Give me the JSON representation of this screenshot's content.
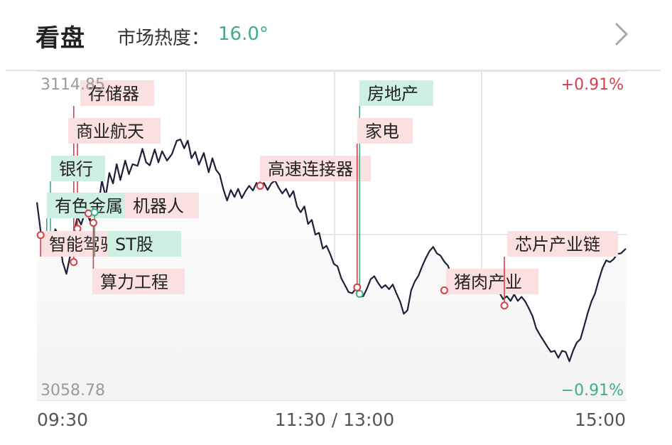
{
  "header": {
    "title": "看盘",
    "heat_label": "市场热度：",
    "heat_value": "16.0°",
    "more_icon": "chevron-right-icon"
  },
  "chart_data": {
    "type": "line",
    "title": "",
    "ylim": [
      3058.78,
      3114.85
    ],
    "y_top_label": "3114.85",
    "y_bottom_label": "3058.78",
    "pct_top_label": "+0.91%",
    "pct_bottom_label": "−0.91%",
    "x_tick_labels": [
      "09:30",
      "11:30 / 13:00",
      "15:00"
    ],
    "x_range": [
      0,
      240
    ],
    "grid": true,
    "series": [
      {
        "values": [
          [
            0,
            3092.5
          ],
          [
            1.5,
            3087.6
          ],
          [
            2.5,
            3085.2
          ],
          [
            4,
            3083.6
          ],
          [
            6,
            3085.2
          ],
          [
            7.5,
            3087.9
          ],
          [
            9,
            3086.7
          ],
          [
            10.5,
            3082.3
          ],
          [
            12,
            3080.3
          ],
          [
            13.5,
            3083.3
          ],
          [
            15,
            3087.2
          ],
          [
            16.5,
            3090.0
          ],
          [
            18,
            3088.7
          ],
          [
            20,
            3091.3
          ],
          [
            21.5,
            3089.4
          ],
          [
            23,
            3091.8
          ],
          [
            24.5,
            3090.5
          ],
          [
            26.5,
            3096.2
          ],
          [
            28,
            3093.4
          ],
          [
            29.5,
            3097.5
          ],
          [
            31,
            3095.7
          ],
          [
            32.5,
            3099.0
          ],
          [
            34,
            3096.3
          ],
          [
            36,
            3099.6
          ],
          [
            37.5,
            3097.3
          ],
          [
            39,
            3099.0
          ],
          [
            41,
            3098.7
          ],
          [
            43,
            3101.6
          ],
          [
            44.5,
            3099.3
          ],
          [
            46,
            3098.8
          ],
          [
            48,
            3101.5
          ],
          [
            49.5,
            3099.3
          ],
          [
            51,
            3101.2
          ],
          [
            53,
            3099.6
          ],
          [
            55,
            3100.7
          ],
          [
            57,
            3103.0
          ],
          [
            58.5,
            3103.2
          ],
          [
            60,
            3101.7
          ],
          [
            61.5,
            3103.0
          ],
          [
            63,
            3100.0
          ],
          [
            64.5,
            3101.1
          ],
          [
            66,
            3098.9
          ],
          [
            68,
            3100.9
          ],
          [
            70,
            3097.6
          ],
          [
            71.5,
            3100.0
          ],
          [
            73,
            3098.0
          ],
          [
            74.5,
            3097.2
          ],
          [
            76,
            3094.7
          ],
          [
            77.5,
            3092.8
          ],
          [
            79,
            3094.6
          ],
          [
            80.5,
            3093.4
          ],
          [
            82,
            3094.8
          ],
          [
            83.5,
            3093.2
          ],
          [
            85,
            3094.4
          ],
          [
            86.5,
            3095.3
          ],
          [
            88,
            3094.5
          ],
          [
            89.5,
            3095.8
          ],
          [
            91,
            3095.0
          ],
          [
            92.5,
            3095.8
          ],
          [
            94,
            3094.6
          ],
          [
            95.5,
            3095.7
          ],
          [
            97,
            3096.2
          ],
          [
            98.5,
            3095.0
          ],
          [
            100,
            3094.0
          ],
          [
            101.5,
            3094.8
          ],
          [
            103,
            3093.4
          ],
          [
            104.5,
            3094.4
          ],
          [
            106,
            3091.8
          ],
          [
            107.5,
            3090.8
          ],
          [
            109,
            3091.8
          ],
          [
            110.5,
            3088.8
          ],
          [
            112,
            3089.5
          ],
          [
            113.5,
            3087.0
          ],
          [
            115,
            3087.3
          ],
          [
            116.5,
            3084.6
          ],
          [
            118,
            3085.1
          ],
          [
            119.5,
            3083.7
          ],
          [
            121,
            3082.0
          ],
          [
            122.5,
            3081.6
          ],
          [
            124,
            3079.6
          ],
          [
            125.5,
            3078.4
          ],
          [
            127,
            3077.2
          ],
          [
            128.5,
            3077.0
          ],
          [
            130,
            3077.8
          ],
          [
            131.5,
            3076.4
          ],
          [
            133,
            3076.5
          ],
          [
            134.5,
            3077.8
          ],
          [
            136,
            3079.4
          ],
          [
            137.5,
            3079.9
          ],
          [
            139,
            3078.8
          ],
          [
            140.5,
            3077.9
          ],
          [
            142,
            3078.4
          ],
          [
            143.5,
            3077.7
          ],
          [
            145,
            3078.5
          ],
          [
            146.5,
            3077.0
          ],
          [
            148,
            3075.6
          ],
          [
            149.5,
            3073.5
          ],
          [
            151,
            3074.1
          ],
          [
            152.5,
            3077.5
          ],
          [
            154,
            3079.0
          ],
          [
            155.5,
            3080.0
          ],
          [
            157,
            3081.6
          ],
          [
            158.5,
            3083.0
          ],
          [
            160,
            3084.2
          ],
          [
            161.5,
            3084.9
          ],
          [
            163,
            3083.8
          ],
          [
            164.5,
            3083.4
          ],
          [
            166,
            3082.4
          ],
          [
            167.5,
            3081.7
          ],
          [
            169,
            3079.9
          ],
          [
            170.5,
            3081.0
          ],
          [
            172,
            3079.6
          ],
          [
            173.5,
            3078.3
          ],
          [
            175,
            3079.3
          ],
          [
            176.5,
            3080.1
          ],
          [
            178,
            3078.8
          ],
          [
            179.5,
            3078.2
          ],
          [
            181,
            3080.4
          ],
          [
            182.5,
            3079.8
          ],
          [
            184,
            3079.0
          ],
          [
            185.5,
            3078.1
          ],
          [
            187,
            3077.6
          ],
          [
            188.5,
            3077.1
          ],
          [
            190,
            3076.0
          ],
          [
            191.5,
            3076.5
          ],
          [
            193,
            3075.7
          ],
          [
            194.5,
            3076.8
          ],
          [
            196,
            3075.7
          ],
          [
            197.5,
            3076.4
          ],
          [
            199,
            3075.6
          ],
          [
            200.5,
            3074.4
          ],
          [
            202,
            3073.1
          ],
          [
            203.5,
            3071.0
          ],
          [
            205,
            3069.9
          ],
          [
            206.5,
            3068.9
          ],
          [
            208,
            3067.9
          ],
          [
            209.5,
            3067.0
          ],
          [
            211,
            3067.2
          ],
          [
            212.5,
            3066.0
          ],
          [
            214,
            3067.2
          ],
          [
            215.5,
            3067.0
          ],
          [
            217,
            3065.4
          ],
          [
            218.5,
            3067.2
          ],
          [
            220,
            3068.6
          ],
          [
            221.5,
            3069.2
          ],
          [
            223,
            3071.4
          ],
          [
            224.5,
            3073.7
          ],
          [
            226,
            3075.6
          ],
          [
            227.5,
            3077.0
          ],
          [
            229,
            3079.3
          ],
          [
            230.5,
            3081.3
          ],
          [
            232,
            3082.6
          ],
          [
            233.5,
            3082.3
          ],
          [
            235,
            3082.8
          ],
          [
            236.5,
            3083.7
          ],
          [
            238,
            3083.8
          ],
          [
            240,
            3084.6
          ]
        ]
      }
    ],
    "annotations": [
      {
        "label": "存储器",
        "x": 15,
        "y": 3082.3,
        "color": "red"
      },
      {
        "label": "商业航天",
        "x": 16.5,
        "y": 3088.0,
        "color": "red"
      },
      {
        "label": "银行",
        "x": 5.5,
        "y": 3084.6,
        "color": "green"
      },
      {
        "label": "有色金属",
        "x": 4,
        "y": 3086.0,
        "color": "green"
      },
      {
        "label": "机器人",
        "x": 21,
        "y": 3090.6,
        "color": "red"
      },
      {
        "label": "智能驾驶",
        "x": 1.5,
        "y": 3086.9,
        "color": "red"
      },
      {
        "label": "ST股",
        "x": 23.5,
        "y": 3090.8,
        "color": "green"
      },
      {
        "label": "算力工程",
        "x": 23,
        "y": 3089.0,
        "color": "red"
      },
      {
        "label": "高速连接器",
        "x": 91,
        "y": 3095.3,
        "color": "red"
      },
      {
        "label": "房地产",
        "x": 131.5,
        "y": 3076.9,
        "color": "green"
      },
      {
        "label": "家电",
        "x": 130.5,
        "y": 3078.0,
        "color": "red"
      },
      {
        "label": "猪肉产业",
        "x": 166,
        "y": 3077.5,
        "color": "red"
      },
      {
        "label": "芯片产业链",
        "x": 190.5,
        "y": 3074.9,
        "color": "red"
      }
    ]
  },
  "colors": {
    "line": "#1d2038",
    "red": "#d64046",
    "green": "#3fae84",
    "red_tag_bg": "#fbe0e1",
    "green_tag_bg": "#cdf0e2",
    "grid": "#e6e6e6",
    "fill_top": "#ffffff",
    "fill_bottom": "#f5f5f5"
  }
}
